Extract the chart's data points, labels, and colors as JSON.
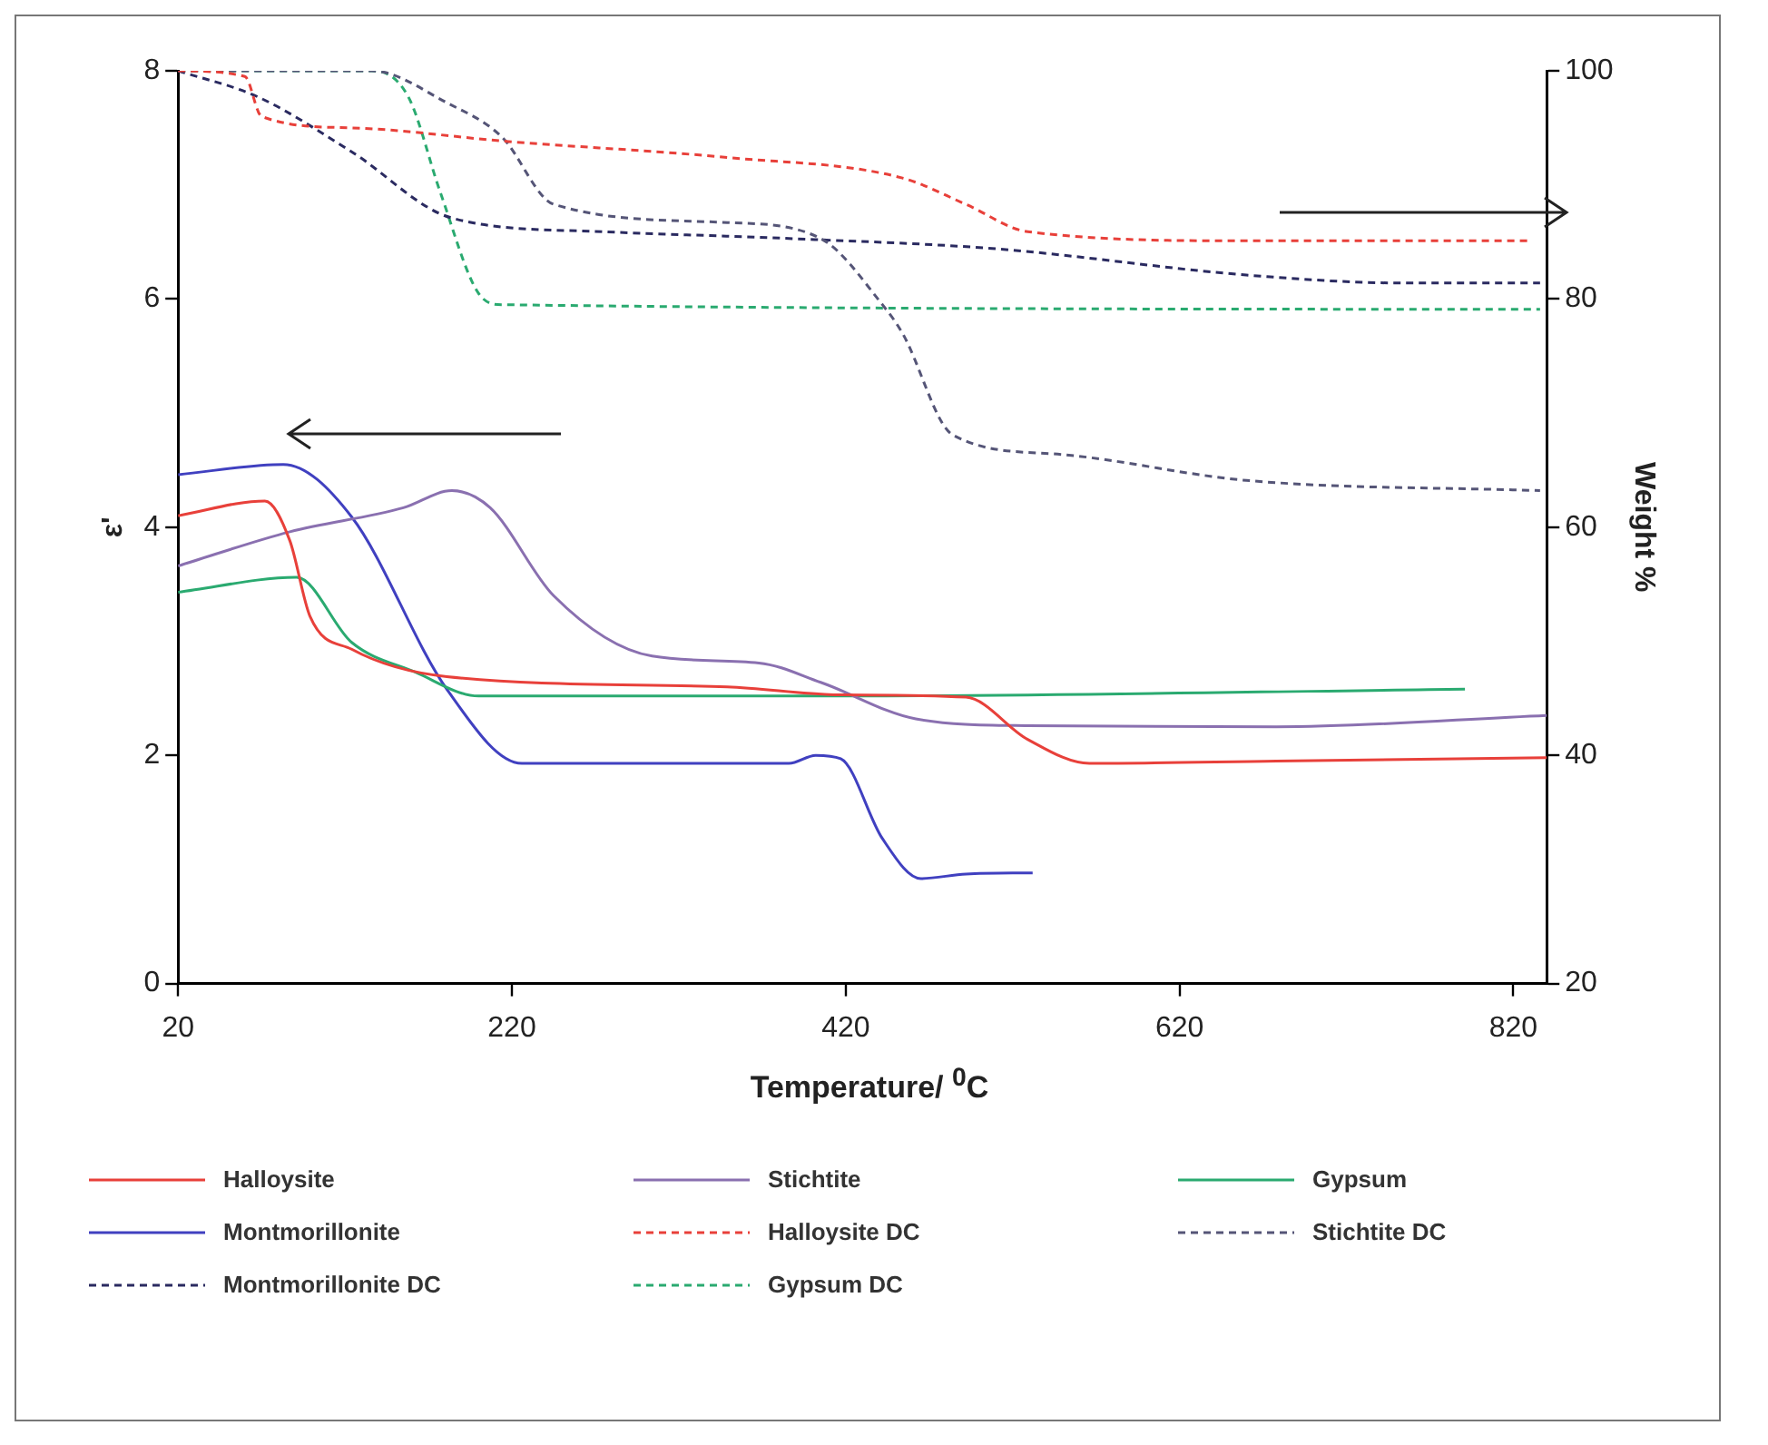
{
  "chart_data": {
    "type": "line",
    "xlabel": "Temperature/ $^{0}$C",
    "ylabel": "ε'",
    "y2label": "Weight %",
    "xlim": [
      20,
      840
    ],
    "xticks": [
      20,
      220,
      420,
      620,
      820
    ],
    "ylim": [
      0,
      8
    ],
    "yticks": [
      0,
      2,
      4,
      6,
      8
    ],
    "y2lim": [
      20,
      100
    ],
    "y2ticks": [
      20,
      40,
      60,
      80,
      100
    ],
    "legend": "bottom",
    "marker": "none",
    "series": [
      {
        "name": "Halloysite",
        "color": "#e8403a",
        "line_style": "solid",
        "x": [
          20,
          72,
          87,
          99,
          124,
          181,
          349,
          417,
          492,
          529,
          566,
          678,
          840
        ],
        "values": [
          4.1,
          4.23,
          3.88,
          3.22,
          2.93,
          2.69,
          2.6,
          2.53,
          2.51,
          2.14,
          1.93,
          1.95,
          1.98
        ]
      },
      {
        "name": "Stichtite",
        "color": "#8a70b0",
        "line_style": "solid",
        "x": [
          20,
          87,
          155,
          184,
          207,
          245,
          304,
          368,
          405,
          462,
          529,
          678,
          840
        ],
        "values": [
          3.66,
          3.96,
          4.17,
          4.32,
          4.17,
          3.4,
          2.87,
          2.81,
          2.64,
          2.32,
          2.26,
          2.25,
          2.35
        ]
      },
      {
        "name": "Gypsum",
        "color": "#2aaa70",
        "line_style": "solid",
        "x": [
          20,
          91,
          124,
          162,
          200,
          424,
          791
        ],
        "values": [
          3.43,
          3.56,
          2.99,
          2.73,
          2.52,
          2.52,
          2.58
        ]
      },
      {
        "name": "Montmorillonite",
        "color": "#4040c0",
        "line_style": "solid",
        "x": [
          20,
          83,
          124,
          181,
          226,
          386,
          402,
          417,
          442,
          465,
          492,
          532
        ],
        "values": [
          4.46,
          4.55,
          4.09,
          2.58,
          1.93,
          1.93,
          2.0,
          1.97,
          1.27,
          0.92,
          0.96,
          0.97
        ]
      },
      {
        "name": "Halloysite DC",
        "color": "#e8403a",
        "line_style": "dashed",
        "axis": "y2",
        "x": [
          20,
          60,
          70,
          124,
          218,
          349,
          454,
          492,
          529,
          660,
          829
        ],
        "values": [
          100,
          99.5,
          96,
          95,
          93.8,
          92.4,
          90.6,
          88.3,
          85.9,
          85.1,
          85.1
        ]
      },
      {
        "name": "Stichtite DC",
        "color": "#555577",
        "line_style": "dashed",
        "axis": "y2",
        "x": [
          20,
          136,
          181,
          214,
          245,
          349,
          405,
          442,
          454,
          484,
          547,
          660,
          836
        ],
        "values": [
          100,
          100,
          97.2,
          94.2,
          88.3,
          86.7,
          85.3,
          79.5,
          77,
          68.1,
          66.4,
          64.1,
          63.2
        ]
      },
      {
        "name": "Montmorillonite DC",
        "color": "#2a2a60",
        "line_style": "dashed",
        "axis": "y2",
        "x": [
          20,
          68,
          124,
          184,
          274,
          386,
          510,
          660,
          754,
          836
        ],
        "values": [
          100,
          97.7,
          92.9,
          87.1,
          85.9,
          85.3,
          84.4,
          82.1,
          81.4,
          81.4
        ]
      },
      {
        "name": "Gypsum DC",
        "color": "#2aaa70",
        "line_style": "dashed",
        "axis": "y2",
        "x": [
          20,
          136,
          158,
          177,
          200,
          214,
          836
        ],
        "values": [
          100,
          100,
          97.7,
          89.4,
          80.5,
          79.5,
          79.1
        ]
      }
    ]
  }
}
